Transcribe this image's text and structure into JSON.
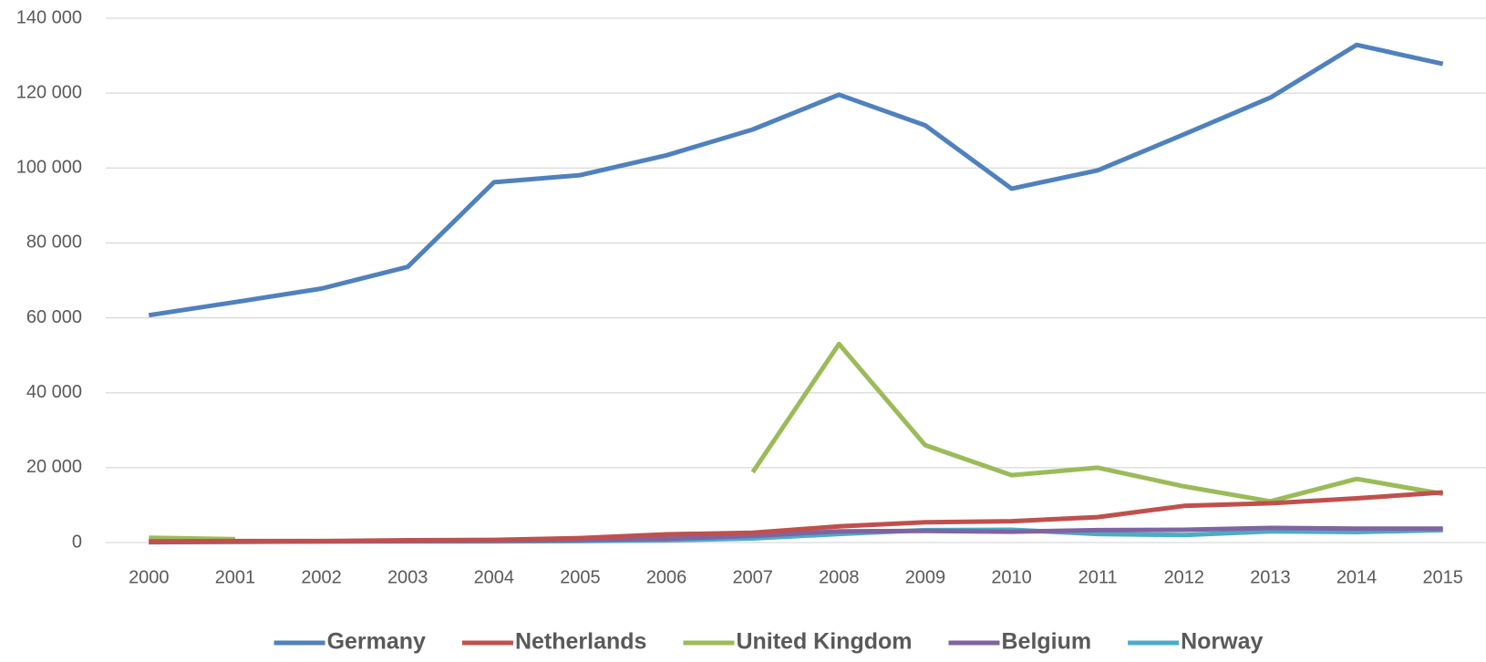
{
  "chart_data": {
    "type": "line",
    "categories": [
      "2000",
      "2001",
      "2002",
      "2003",
      "2004",
      "2005",
      "2006",
      "2007",
      "2008",
      "2009",
      "2010",
      "2011",
      "2012",
      "2013",
      "2014",
      "2015"
    ],
    "series": [
      {
        "name": "Germany",
        "color": "#4f81bd",
        "values": [
          60700,
          64200,
          67800,
          73600,
          96200,
          98100,
          103400,
          110300,
          119600,
          111400,
          94500,
          99400,
          109000,
          118800,
          132900,
          127800
        ]
      },
      {
        "name": "Netherlands",
        "color": "#c0504d",
        "values": [
          300,
          400,
          400,
          600,
          700,
          1200,
          2200,
          2600,
          4300,
          5400,
          5700,
          6800,
          9800,
          10500,
          11800,
          13400
        ]
      },
      {
        "name": "United Kingdom",
        "color": "#9bbb59",
        "values": [
          1300,
          900,
          null,
          null,
          null,
          null,
          null,
          18800,
          53000,
          26000,
          18000,
          20000,
          15000,
          11000,
          17000,
          13000
        ]
      },
      {
        "name": "Belgium",
        "color": "#8064a2",
        "values": [
          100,
          200,
          300,
          400,
          500,
          700,
          1000,
          1800,
          3000,
          3100,
          2900,
          3300,
          3400,
          3900,
          3700,
          3700
        ]
      },
      {
        "name": "Norway",
        "color": "#4bacc6",
        "values": [
          400,
          300,
          300,
          300,
          300,
          400,
          600,
          1100,
          2300,
          3300,
          3400,
          2300,
          2000,
          3000,
          2800,
          3300
        ]
      }
    ],
    "ylim": [
      0,
      140000
    ],
    "yticks": [
      0,
      {
        "value": 20000,
        "label": "20 000"
      },
      {
        "value": 40000,
        "label": "40 000"
      },
      {
        "value": 60000,
        "label": "60 000"
      },
      {
        "value": 80000,
        "label": "80 000"
      },
      {
        "value": 100000,
        "label": "100 000"
      },
      {
        "value": 120000,
        "label": "120 000"
      },
      {
        "value": 140000,
        "label": "140 000"
      }
    ],
    "grid": true,
    "legend": "bottom"
  }
}
